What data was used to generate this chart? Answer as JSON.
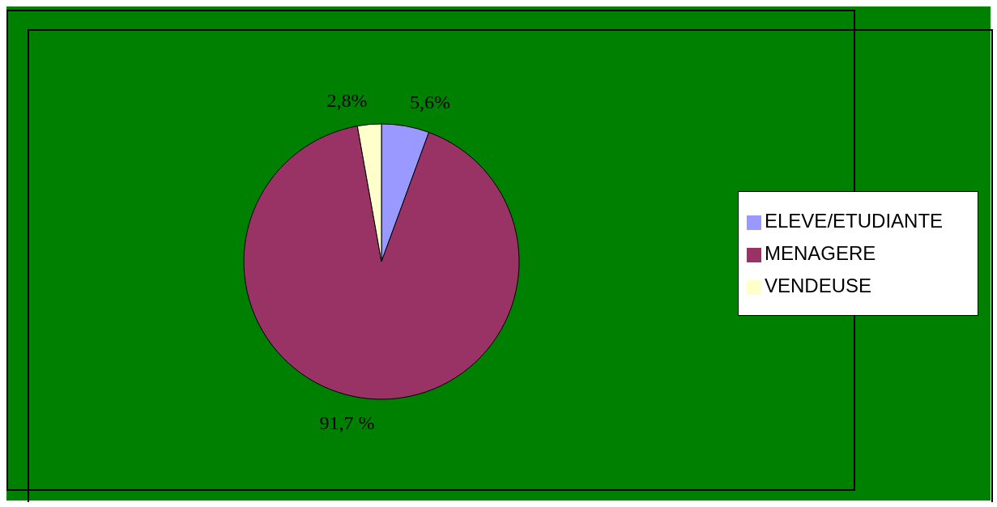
{
  "chart_data": {
    "type": "pie",
    "categories": [
      "ELEVE/ETUDIANTE",
      "MENAGERE",
      "VENDEUSE"
    ],
    "values": [
      5.6,
      91.7,
      2.8
    ],
    "value_labels": [
      "5,6%",
      "91,7 %",
      "2,8%"
    ],
    "colors": [
      "#9999ff",
      "#993366",
      "#ffffcc"
    ],
    "legend": "right"
  }
}
